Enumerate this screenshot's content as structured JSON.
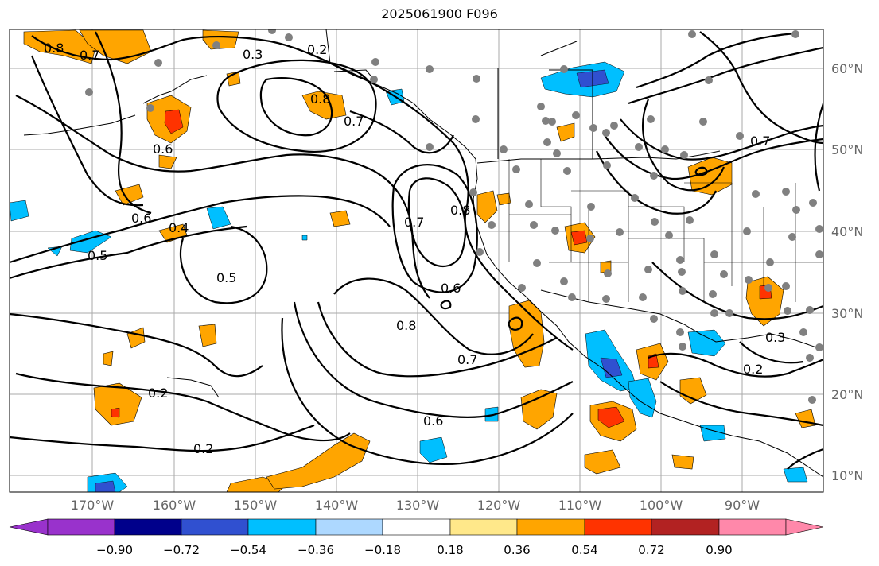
{
  "title": "2025061900 F096",
  "lat_labels": [
    "60°N",
    "50°N",
    "40°N",
    "30°N",
    "20°N",
    "10°N"
  ],
  "lon_labels": [
    "170°W",
    "160°W",
    "150°W",
    "140°W",
    "130°W",
    "120°W",
    "110°W",
    "100°W",
    "90°W"
  ],
  "contour_labels": [
    "0.8",
    "0.7",
    "0.3",
    "0.2",
    "0.8",
    "0.7",
    "0.6",
    "0.6",
    "0.4",
    "0.5",
    "0.5",
    "0.7",
    "0.8",
    "0.6",
    "0.8",
    "0.7",
    "0.6",
    "0.2",
    "0.2",
    "0.7",
    "0.3",
    "0.2"
  ],
  "colorbar": {
    "tick_labels": [
      "−0.90",
      "−0.72",
      "−0.54",
      "−0.36",
      "−0.18",
      "0.18",
      "0.36",
      "0.54",
      "0.72",
      "0.90"
    ],
    "colors": [
      "#9932cc",
      "#00008b",
      "#3050d0",
      "#00bfff",
      "#add8ff",
      "#ffffff",
      "#ffe88a",
      "#ffa500",
      "#ff3300",
      "#b22222",
      "#ff88aa"
    ]
  },
  "legend_icons": [
    "station-dot-icon"
  ]
}
